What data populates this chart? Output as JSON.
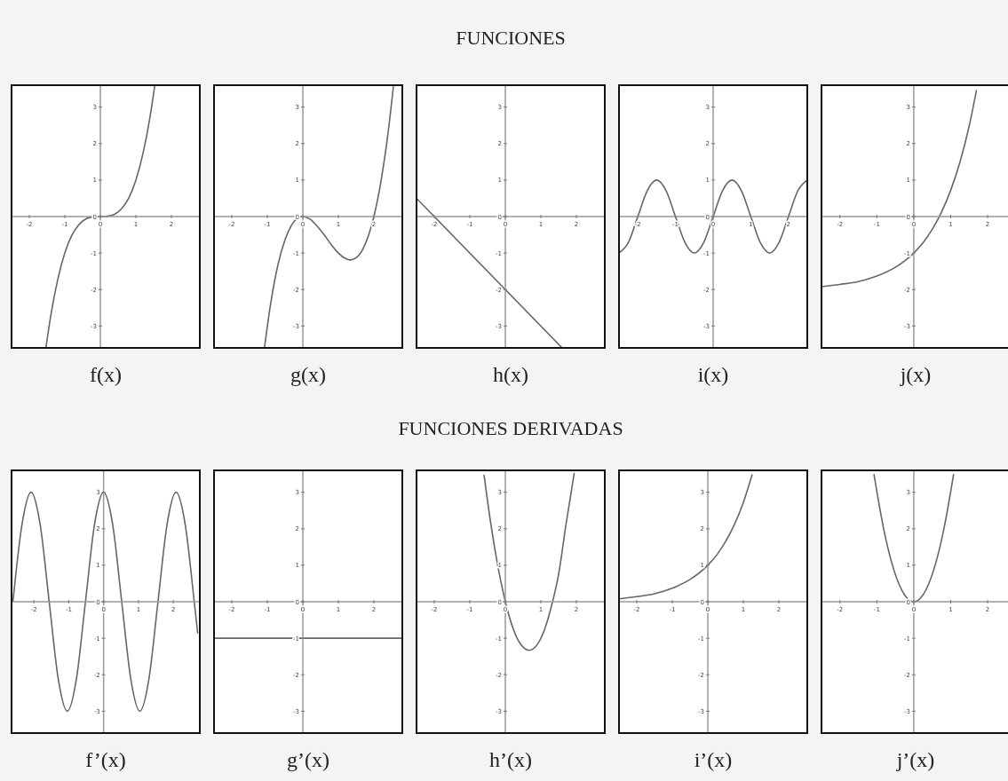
{
  "chart_data": [
    {
      "type": "line",
      "xlabel": "f(x)",
      "color": "#666666",
      "xlim": [
        -2.5,
        2.8
      ],
      "ylim": [
        -3.6,
        3.6
      ],
      "xticks": [
        -2,
        -1,
        0,
        1,
        2
      ],
      "yticks": [
        -3,
        -2,
        -1,
        0,
        1,
        2,
        3
      ],
      "x": [
        -1.53,
        -1.4,
        -1.2,
        -1,
        -0.8,
        -0.6,
        -0.4,
        -0.2,
        0,
        0.2,
        0.4,
        0.6,
        0.8,
        1,
        1.2,
        1.4,
        1.53
      ],
      "values": [
        -3.58,
        -2.74,
        -1.73,
        -1,
        -0.51,
        -0.22,
        -0.06,
        -0.01,
        0,
        0.01,
        0.06,
        0.22,
        0.51,
        1,
        1.73,
        2.74,
        3.58
      ]
    },
    {
      "type": "line",
      "xlabel": "g(x)",
      "color": "#666666",
      "xlim": [
        -2.5,
        2.8
      ],
      "ylim": [
        -3.6,
        3.6
      ],
      "xticks": [
        -2,
        -1,
        0,
        1,
        2
      ],
      "yticks": [
        -3,
        -2,
        -1,
        0,
        1,
        2,
        3
      ],
      "x": [
        -1.08,
        -0.9,
        -0.7,
        -0.5,
        -0.3,
        -0.1,
        0,
        0.2,
        0.4,
        0.6,
        0.8,
        1,
        1.2,
        1.33,
        1.5,
        1.7,
        1.9,
        2,
        2.2,
        2.4,
        2.55
      ],
      "values": [
        -3.59,
        -2.35,
        -1.32,
        -0.63,
        -0.21,
        -0.02,
        0,
        -0.07,
        -0.26,
        -0.5,
        -0.77,
        -1,
        -1.15,
        -1.19,
        -1.13,
        -0.87,
        -0.36,
        0,
        0.97,
        2.3,
        3.57
      ]
    },
    {
      "type": "line",
      "title": "FUNCIONES",
      "xlabel": "h(x)",
      "color": "#666666",
      "xlim": [
        -2.5,
        2.8
      ],
      "ylim": [
        -3.6,
        3.6
      ],
      "xticks": [
        -2,
        -1,
        0,
        1,
        2
      ],
      "yticks": [
        -3,
        -2,
        -1,
        0,
        1,
        2,
        3
      ],
      "x": [
        -2.5,
        1.6
      ],
      "values": [
        0.5,
        -3.6
      ]
    },
    {
      "type": "line",
      "xlabel": "i(x)",
      "color": "#666666",
      "xlim": [
        -2.5,
        2.5
      ],
      "ylim": [
        -3.6,
        3.6
      ],
      "xticks": [
        -2,
        -1,
        0,
        1,
        2
      ],
      "yticks": [
        -3,
        -2,
        -1,
        0,
        1,
        2,
        3
      ],
      "x": [
        -2.5,
        -2.25,
        -2,
        -1.75,
        -1.5,
        -1.25,
        -1,
        -0.75,
        -0.5,
        -0.25,
        0,
        0.25,
        0.5,
        0.75,
        1,
        1.25,
        1.5,
        1.75,
        2,
        2.25,
        2.5
      ],
      "values": [
        -1,
        -0.71,
        0,
        0.71,
        1,
        0.71,
        0,
        -0.71,
        -1,
        -0.71,
        0,
        0.71,
        1,
        0.71,
        0,
        -0.71,
        -1,
        -0.71,
        0,
        0.71,
        1
      ]
    },
    {
      "type": "line",
      "xlabel": "j(x)",
      "color": "#666666",
      "xlim": [
        -2.5,
        2.6
      ],
      "ylim": [
        -3.6,
        3.6
      ],
      "xticks": [
        -2,
        -1,
        0,
        1,
        2
      ],
      "yticks": [
        -3,
        -2,
        -1,
        0,
        1,
        2,
        3
      ],
      "x": [
        -2.5,
        -2,
        -1.5,
        -1,
        -0.5,
        0,
        0.25,
        0.5,
        0.75,
        1,
        1.25,
        1.5,
        1.7
      ],
      "values": [
        -1.92,
        -1.86,
        -1.78,
        -1.63,
        -1.39,
        -1,
        -0.72,
        -0.35,
        0.12,
        0.72,
        1.49,
        2.48,
        3.47
      ]
    },
    {
      "type": "line",
      "xlabel": "f’(x)",
      "color": "#666666",
      "xlim": [
        -2.64,
        2.76
      ],
      "ylim": [
        -3.6,
        3.6
      ],
      "xticks": [
        -2,
        -1,
        0,
        1,
        2
      ],
      "yticks": [
        -3,
        -2,
        -1,
        0,
        1,
        2,
        3
      ],
      "x": [
        -2.6,
        -2.34,
        -2.08,
        -1.82,
        -1.56,
        -1.3,
        -1.04,
        -0.78,
        -0.52,
        -0.26,
        0,
        0.26,
        0.52,
        0.78,
        1.04,
        1.3,
        1.56,
        1.82,
        2.08,
        2.34,
        2.6,
        2.7
      ],
      "values": [
        0,
        2.12,
        3,
        2.12,
        0,
        -2.12,
        -3,
        -2.12,
        0,
        2.12,
        3,
        2.12,
        0,
        -2.12,
        -3,
        -2.12,
        0,
        2.12,
        3,
        2.12,
        0,
        -0.87
      ]
    },
    {
      "type": "line",
      "xlabel": "g’(x)",
      "color": "#666666",
      "xlim": [
        -2.5,
        2.8
      ],
      "ylim": [
        -3.6,
        3.6
      ],
      "xticks": [
        -2,
        -1,
        0,
        1,
        2
      ],
      "yticks": [
        -3,
        -2,
        -1,
        0,
        1,
        2,
        3
      ],
      "x": [
        -2.5,
        2.8
      ],
      "values": [
        -1,
        -1
      ]
    },
    {
      "type": "line",
      "title": "FUNCIONES DERIVADAS",
      "xlabel": "h’(x)",
      "color": "#666666",
      "xlim": [
        -2.5,
        2.8
      ],
      "ylim": [
        -3.6,
        3.6
      ],
      "xticks": [
        -2,
        -1,
        0,
        1,
        2
      ],
      "yticks": [
        -3,
        -2,
        -1,
        0,
        1,
        2,
        3
      ],
      "x": [
        -0.6,
        -0.4,
        -0.2,
        0,
        0.2,
        0.4,
        0.67,
        0.9,
        1.1,
        1.33,
        1.5,
        1.7,
        1.94
      ],
      "values": [
        3.48,
        2.08,
        0.92,
        0,
        -0.68,
        -1.12,
        -1.33,
        -1.17,
        -0.77,
        0,
        0.75,
        2.07,
        3.53
      ]
    },
    {
      "type": "line",
      "xlabel": "i’(x)",
      "color": "#666666",
      "xlim": [
        -2.5,
        2.8
      ],
      "ylim": [
        -3.6,
        3.6
      ],
      "xticks": [
        -2,
        -1,
        0,
        1,
        2
      ],
      "yticks": [
        -3,
        -2,
        -1,
        0,
        1,
        2,
        3
      ],
      "x": [
        -2.5,
        -2,
        -1.5,
        -1,
        -0.5,
        0,
        0.25,
        0.5,
        0.75,
        1,
        1.25
      ],
      "values": [
        0.08,
        0.14,
        0.22,
        0.37,
        0.61,
        1,
        1.28,
        1.65,
        2.12,
        2.72,
        3.49
      ]
    },
    {
      "type": "line",
      "xlabel": "j’(x)",
      "color": "#666666",
      "xlim": [
        -2.5,
        2.6
      ],
      "ylim": [
        -3.6,
        3.6
      ],
      "xticks": [
        -2,
        -1,
        0,
        1,
        2
      ],
      "yticks": [
        -3,
        -2,
        -1,
        0,
        1,
        2,
        3
      ],
      "x": [
        -1.08,
        -0.8,
        -0.6,
        -0.4,
        -0.2,
        0,
        0.2,
        0.4,
        0.6,
        0.8,
        1.08
      ],
      "values": [
        3.5,
        1.92,
        1.08,
        0.48,
        0.12,
        0,
        0.12,
        0.48,
        1.08,
        1.92,
        3.5
      ]
    }
  ]
}
